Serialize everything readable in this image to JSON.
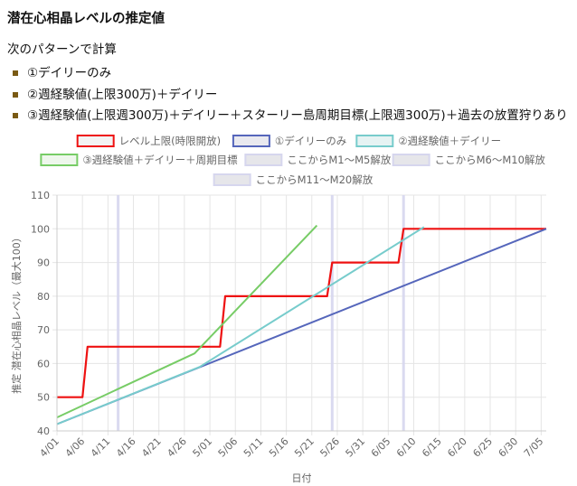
{
  "page": {
    "title": "潜在心相晶レベルの推定値",
    "intro": "次のパターンで計算",
    "bullets": [
      "①デイリーのみ",
      "②週経験値(上限300万)＋デイリー",
      "③週経験値(上限週300万)＋デイリー＋スターリー島周期目標(上限週300万)＋過去の放置狩りあり"
    ]
  },
  "chart_data": {
    "type": "line",
    "xlabel": "日付",
    "ylabel": "推定 潜在心相晶レベル（最大100）",
    "ylim": [
      40,
      110
    ],
    "yticks": [
      40,
      50,
      60,
      70,
      80,
      90,
      100,
      110
    ],
    "x_start": "4/01",
    "x_end": "7/06",
    "x_ticks": [
      "4/01",
      "4/06",
      "4/11",
      "4/16",
      "4/21",
      "4/26",
      "5/01",
      "5/06",
      "5/11",
      "5/16",
      "5/21",
      "5/26",
      "5/31",
      "6/05",
      "6/10",
      "6/15",
      "6/20",
      "6/25",
      "6/30",
      "7/05"
    ],
    "grid": true,
    "legend_position": "top",
    "series": [
      {
        "name": "レベル上限(時限開放)",
        "color": "#ee1111",
        "step": true,
        "points": [
          [
            "4/01",
            50
          ],
          [
            "4/06",
            50
          ],
          [
            "4/07",
            65
          ],
          [
            "5/03",
            65
          ],
          [
            "5/04",
            80
          ],
          [
            "5/24",
            80
          ],
          [
            "5/25",
            90
          ],
          [
            "6/07",
            90
          ],
          [
            "6/08",
            100
          ],
          [
            "7/06",
            100
          ]
        ]
      },
      {
        "name": "①デイリーのみ",
        "color": "#5566bb",
        "points": [
          [
            "4/01",
            42
          ],
          [
            "7/06",
            100
          ]
        ]
      },
      {
        "name": "②週経験値＋デイリー",
        "color": "#77cccc",
        "points": [
          [
            "4/01",
            42
          ],
          [
            "4/29",
            59
          ],
          [
            "6/12",
            100.5
          ]
        ]
      },
      {
        "name": "③週経験値＋デイリー＋周期目標",
        "color": "#77cc66",
        "points": [
          [
            "4/01",
            44
          ],
          [
            "4/28",
            63
          ],
          [
            "5/22",
            101
          ]
        ]
      }
    ],
    "bands": [
      {
        "name": "ここからM1〜M5解放",
        "date": "4/13",
        "color": "#d6d6ee"
      },
      {
        "name": "ここからM6〜M10解放",
        "date": "5/25",
        "color": "#d6d6ee"
      },
      {
        "name": "ここからM11〜M20解放",
        "date": "6/08",
        "color": "#d6d6ee"
      }
    ]
  }
}
